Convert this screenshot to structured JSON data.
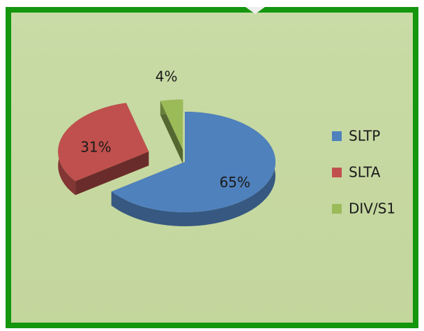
{
  "chart_data": {
    "type": "pie",
    "categories": [
      "SLTP",
      "SLTA",
      "DIV/S1"
    ],
    "values": [
      65,
      31,
      4
    ],
    "value_labels": [
      "65%",
      "31%",
      "4%"
    ],
    "colors": [
      "#4f81bd",
      "#c0504d",
      "#9bbb59"
    ],
    "legend": "right"
  }
}
